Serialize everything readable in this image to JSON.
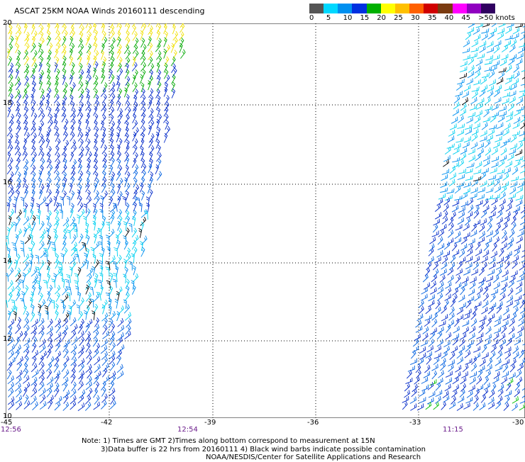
{
  "header": {
    "title": "ASCAT 25KM NOAA Winds 20160111 descending"
  },
  "legend": {
    "colors": [
      "#555555",
      "#00d8ff",
      "#0090f0",
      "#0030e0",
      "#00b000",
      "#ffff00",
      "#ffc000",
      "#ff6000",
      "#d00000",
      "#7a3a10",
      "#ff00ff",
      "#9000c0",
      "#300060"
    ],
    "labels": [
      "0",
      "5",
      "10",
      "15",
      "20",
      "25",
      "30",
      "35",
      "40",
      "45",
      ">50 knots"
    ]
  },
  "axes": {
    "lat_labels": [
      "20",
      "18",
      "16",
      "14",
      "12",
      "10"
    ],
    "lon_labels": [
      "-45",
      "-42",
      "-39",
      "-36",
      "-33",
      "-30"
    ]
  },
  "pass_times": [
    "12:56",
    "12:54",
    "11:15"
  ],
  "notes": [
    "Note: 1) Times are GMT 2)Times along bottom correspond to measurement at 15N",
    "3)Data buffer is 22 hrs from 20160111 4) Black wind barbs indicate possible contamination",
    "NOAA/NESDIS/Center for Satellite Applications and Research"
  ]
}
